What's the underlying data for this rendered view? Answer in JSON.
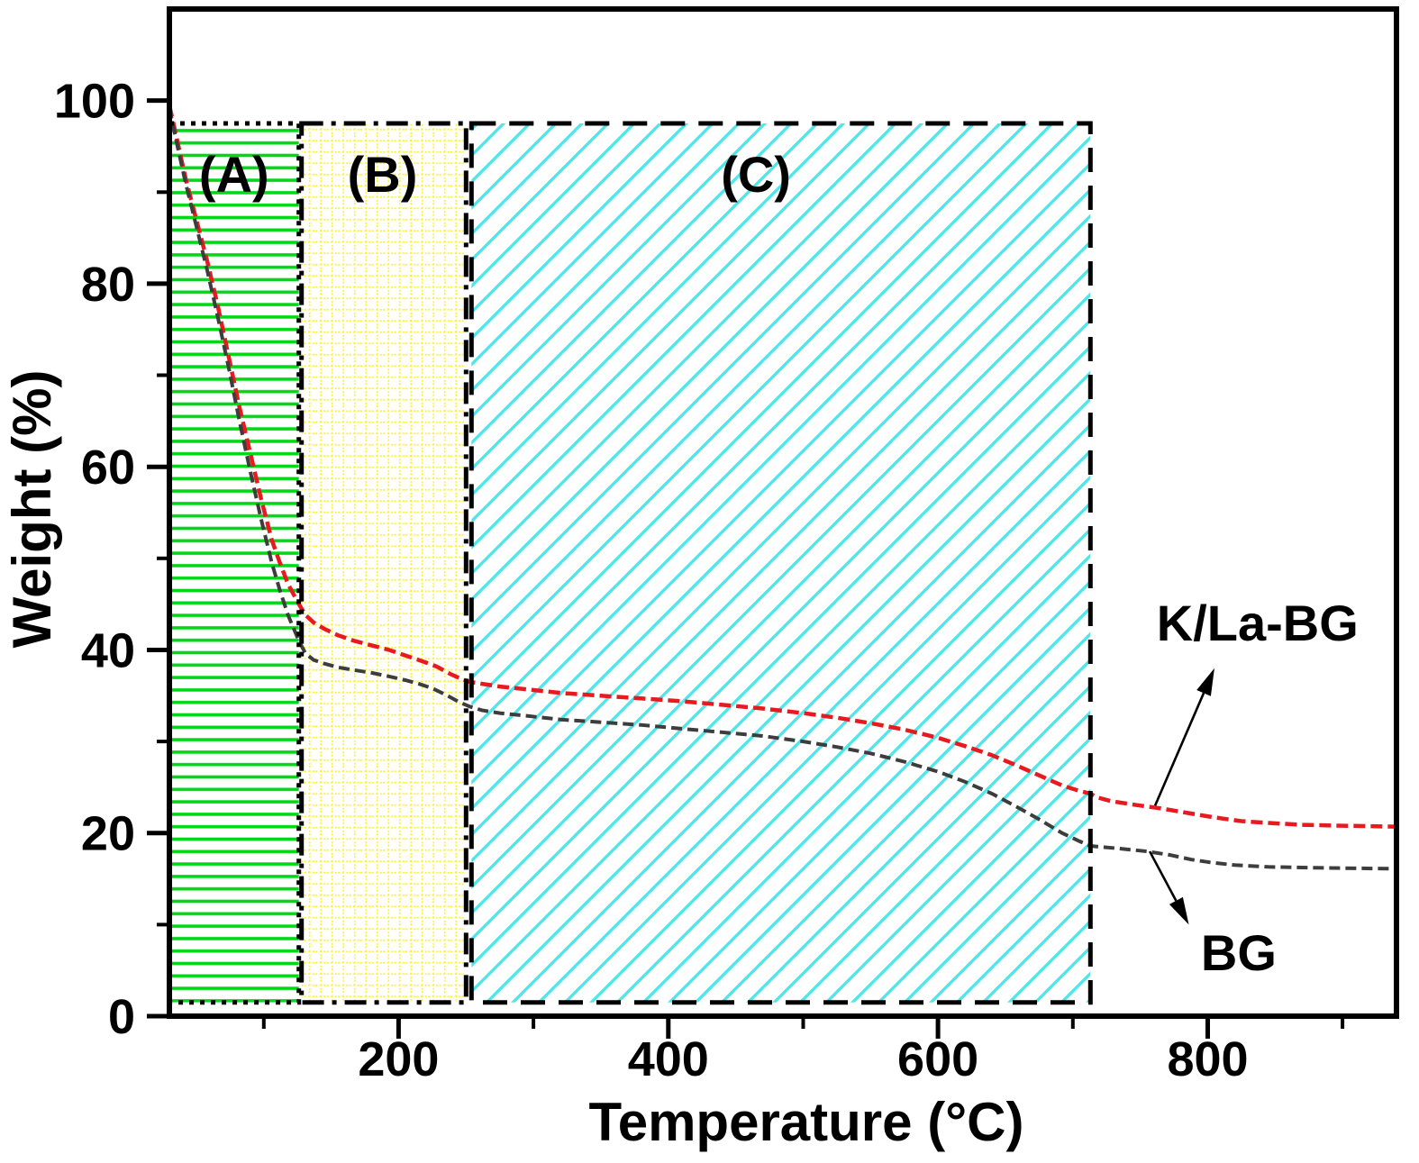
{
  "chart_data": {
    "type": "line",
    "title": "",
    "xlabel": "Temperature (°C)",
    "ylabel": "Weight (%)",
    "xlim": [
      30,
      940
    ],
    "ylim": [
      0,
      110
    ],
    "grid": false,
    "legend_position": "none",
    "x_ticks_major": [
      200,
      400,
      600,
      800
    ],
    "x_ticks_minor": [
      100,
      300,
      500,
      700,
      900
    ],
    "y_ticks_major": [
      0,
      20,
      40,
      60,
      80,
      100
    ],
    "y_ticks_minor": [
      10,
      30,
      50,
      70,
      90
    ],
    "axis_color": "#000000",
    "series": [
      {
        "name": "K/La-BG",
        "color": "#e8191f",
        "dash": "13 6",
        "width": 4.5,
        "points": [
          [
            30,
            99.5
          ],
          [
            36,
            95.5
          ],
          [
            42,
            91.5
          ],
          [
            50,
            87
          ],
          [
            58,
            82.5
          ],
          [
            66,
            77.5
          ],
          [
            74,
            72
          ],
          [
            82,
            66.5
          ],
          [
            90,
            61.5
          ],
          [
            98,
            56.5
          ],
          [
            106,
            52
          ],
          [
            112,
            49.5
          ],
          [
            118,
            47.2
          ],
          [
            126,
            45.0
          ],
          [
            131,
            43.8
          ],
          [
            137,
            43.0
          ],
          [
            145,
            42.3
          ],
          [
            155,
            41.6
          ],
          [
            167,
            41.0
          ],
          [
            180,
            40.5
          ],
          [
            193,
            40.0
          ],
          [
            205,
            39.4
          ],
          [
            217,
            38.8
          ],
          [
            228,
            38.2
          ],
          [
            238,
            37.4
          ],
          [
            247,
            36.8
          ],
          [
            253,
            36.5
          ],
          [
            262,
            36.3
          ],
          [
            275,
            36.0
          ],
          [
            295,
            35.7
          ],
          [
            320,
            35.3
          ],
          [
            350,
            35.0
          ],
          [
            380,
            34.7
          ],
          [
            410,
            34.4
          ],
          [
            440,
            34.0
          ],
          [
            470,
            33.6
          ],
          [
            500,
            33.1
          ],
          [
            525,
            32.6
          ],
          [
            550,
            32.0
          ],
          [
            575,
            31.3
          ],
          [
            600,
            30.4
          ],
          [
            620,
            29.5
          ],
          [
            640,
            28.5
          ],
          [
            658,
            27.4
          ],
          [
            675,
            26.3
          ],
          [
            692,
            25.2
          ],
          [
            705,
            24.6
          ],
          [
            713,
            24.3
          ],
          [
            718,
            23.9
          ],
          [
            728,
            23.5
          ],
          [
            745,
            23.1
          ],
          [
            765,
            22.7
          ],
          [
            785,
            22.2
          ],
          [
            805,
            21.7
          ],
          [
            825,
            21.3
          ],
          [
            845,
            21.1
          ],
          [
            870,
            20.9
          ],
          [
            900,
            20.8
          ],
          [
            940,
            20.7
          ]
        ]
      },
      {
        "name": "BG",
        "color": "#3d3d3d",
        "dash": "12 6",
        "width": 4,
        "points": [
          [
            30,
            99.2
          ],
          [
            36,
            95
          ],
          [
            42,
            91
          ],
          [
            50,
            86.3
          ],
          [
            58,
            81.5
          ],
          [
            66,
            76.3
          ],
          [
            74,
            70.8
          ],
          [
            82,
            65
          ],
          [
            90,
            59.5
          ],
          [
            98,
            54.3
          ],
          [
            106,
            49.5
          ],
          [
            112,
            46.5
          ],
          [
            118,
            43.8
          ],
          [
            126,
            41.0
          ],
          [
            131,
            39.6
          ],
          [
            137,
            38.9
          ],
          [
            145,
            38.5
          ],
          [
            155,
            38.1
          ],
          [
            167,
            37.8
          ],
          [
            180,
            37.5
          ],
          [
            193,
            37.1
          ],
          [
            205,
            36.7
          ],
          [
            215,
            36.3
          ],
          [
            225,
            35.8
          ],
          [
            235,
            35.1
          ],
          [
            245,
            34.3
          ],
          [
            253,
            33.8
          ],
          [
            262,
            33.4
          ],
          [
            275,
            33.1
          ],
          [
            295,
            32.8
          ],
          [
            320,
            32.4
          ],
          [
            350,
            32.1
          ],
          [
            380,
            31.8
          ],
          [
            410,
            31.4
          ],
          [
            440,
            31.0
          ],
          [
            470,
            30.6
          ],
          [
            500,
            30.0
          ],
          [
            525,
            29.4
          ],
          [
            550,
            28.7
          ],
          [
            575,
            27.8
          ],
          [
            600,
            26.7
          ],
          [
            620,
            25.6
          ],
          [
            640,
            24.3
          ],
          [
            658,
            22.9
          ],
          [
            675,
            21.5
          ],
          [
            692,
            20.0
          ],
          [
            705,
            19.1
          ],
          [
            713,
            18.6
          ],
          [
            720,
            18.5
          ],
          [
            735,
            18.3
          ],
          [
            755,
            18.0
          ],
          [
            772,
            17.6
          ],
          [
            788,
            17.1
          ],
          [
            802,
            16.8
          ],
          [
            820,
            16.5
          ],
          [
            845,
            16.3
          ],
          [
            880,
            16.2
          ],
          [
            940,
            16.1
          ]
        ]
      }
    ],
    "regions": [
      {
        "id": "A",
        "label": "(A)",
        "x0": 30,
        "x1": 126,
        "y0": 1.5,
        "y1": 97.5,
        "hatch": "horizontal",
        "hatch_color": "#00d816",
        "border_style": "dotted",
        "border_color": "#000000",
        "label_x": 78,
        "label_y": 92
      },
      {
        "id": "B",
        "label": "(B)",
        "x0": 128,
        "x1": 250,
        "y0": 1.5,
        "y1": 97.5,
        "hatch": "grid",
        "hatch_color": "#fff23d",
        "border_style": "dashdot",
        "border_color": "#000000",
        "label_x": 188,
        "label_y": 92
      },
      {
        "id": "C",
        "label": "(C)",
        "x0": 254,
        "x1": 713,
        "y0": 1.5,
        "y1": 97.5,
        "hatch": "diagonal",
        "hatch_color": "#4ee6eb",
        "border_style": "dashed",
        "border_color": "#000000",
        "label_x": 465,
        "label_y": 92
      }
    ],
    "annotations": [
      {
        "id": "kla-bg",
        "text": "K/La-BG",
        "text_x": 837,
        "text_y": 43,
        "arrow_from_x": 761,
        "arrow_from_y": 23,
        "arrow_to_x": 805,
        "arrow_to_y": 38
      },
      {
        "id": "bg",
        "text": "BG",
        "text_x": 823,
        "text_y": 7,
        "arrow_from_x": 757,
        "arrow_from_y": 18,
        "arrow_to_x": 786,
        "arrow_to_y": 10
      }
    ]
  }
}
